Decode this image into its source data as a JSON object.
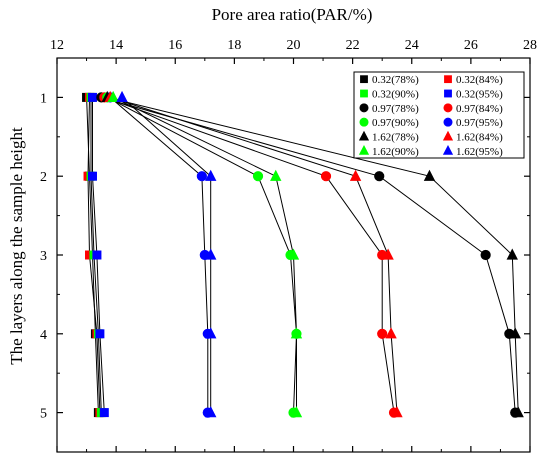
{
  "chart_data": {
    "type": "line",
    "xlabel": "Pore area ratio(PAR/%)",
    "ylabel": "The layers along the sample height",
    "xlim": [
      12,
      28
    ],
    "ylim": [
      0.5,
      5.5
    ],
    "x_ticks": [
      "12",
      "14",
      "16",
      "18",
      "20",
      "22",
      "24",
      "26",
      "28"
    ],
    "y_ticks": [
      "1",
      "2",
      "3",
      "4",
      "5"
    ],
    "y_inverted": true,
    "legend_position": "top-right",
    "layers": [
      1,
      2,
      3,
      4,
      5
    ],
    "series": [
      {
        "name": "0.32(78%)",
        "marker": "square",
        "color": "#000000",
        "values": [
          13.0,
          13.1,
          13.2,
          13.3,
          13.4
        ]
      },
      {
        "name": "0.32(84%)",
        "marker": "square",
        "color": "#ff0000",
        "values": [
          13.1,
          13.05,
          13.1,
          13.35,
          13.45
        ]
      },
      {
        "name": "0.32(90%)",
        "marker": "square",
        "color": "#00ff00",
        "values": [
          13.15,
          13.15,
          13.25,
          13.4,
          13.5
        ]
      },
      {
        "name": "0.32(95%)",
        "marker": "square",
        "color": "#0000ff",
        "values": [
          13.2,
          13.2,
          13.35,
          13.45,
          13.6
        ]
      },
      {
        "name": "0.97(78%)",
        "marker": "circle",
        "color": "#000000",
        "values": [
          13.5,
          22.9,
          26.5,
          27.3,
          27.5
        ]
      },
      {
        "name": "0.97(84%)",
        "marker": "circle",
        "color": "#ff0000",
        "values": [
          13.6,
          21.1,
          23.0,
          23.0,
          23.4
        ]
      },
      {
        "name": "0.97(90%)",
        "marker": "circle",
        "color": "#00ff00",
        "values": [
          13.7,
          18.8,
          19.9,
          20.1,
          20.0
        ]
      },
      {
        "name": "0.97(95%)",
        "marker": "circle",
        "color": "#0000ff",
        "values": [
          13.8,
          16.9,
          17.0,
          17.1,
          17.1
        ]
      },
      {
        "name": "1.62(78%)",
        "marker": "triangle",
        "color": "#000000",
        "values": [
          13.7,
          24.6,
          27.4,
          27.5,
          27.6
        ]
      },
      {
        "name": "1.62(84%)",
        "marker": "triangle",
        "color": "#ff0000",
        "values": [
          13.8,
          22.1,
          23.2,
          23.3,
          23.5
        ]
      },
      {
        "name": "1.62(90%)",
        "marker": "triangle",
        "color": "#00ff00",
        "values": [
          13.9,
          19.4,
          20.0,
          20.1,
          20.1
        ]
      },
      {
        "name": "1.62(95%)",
        "marker": "triangle",
        "color": "#0000ff",
        "values": [
          14.2,
          17.2,
          17.2,
          17.2,
          17.2
        ]
      }
    ]
  }
}
